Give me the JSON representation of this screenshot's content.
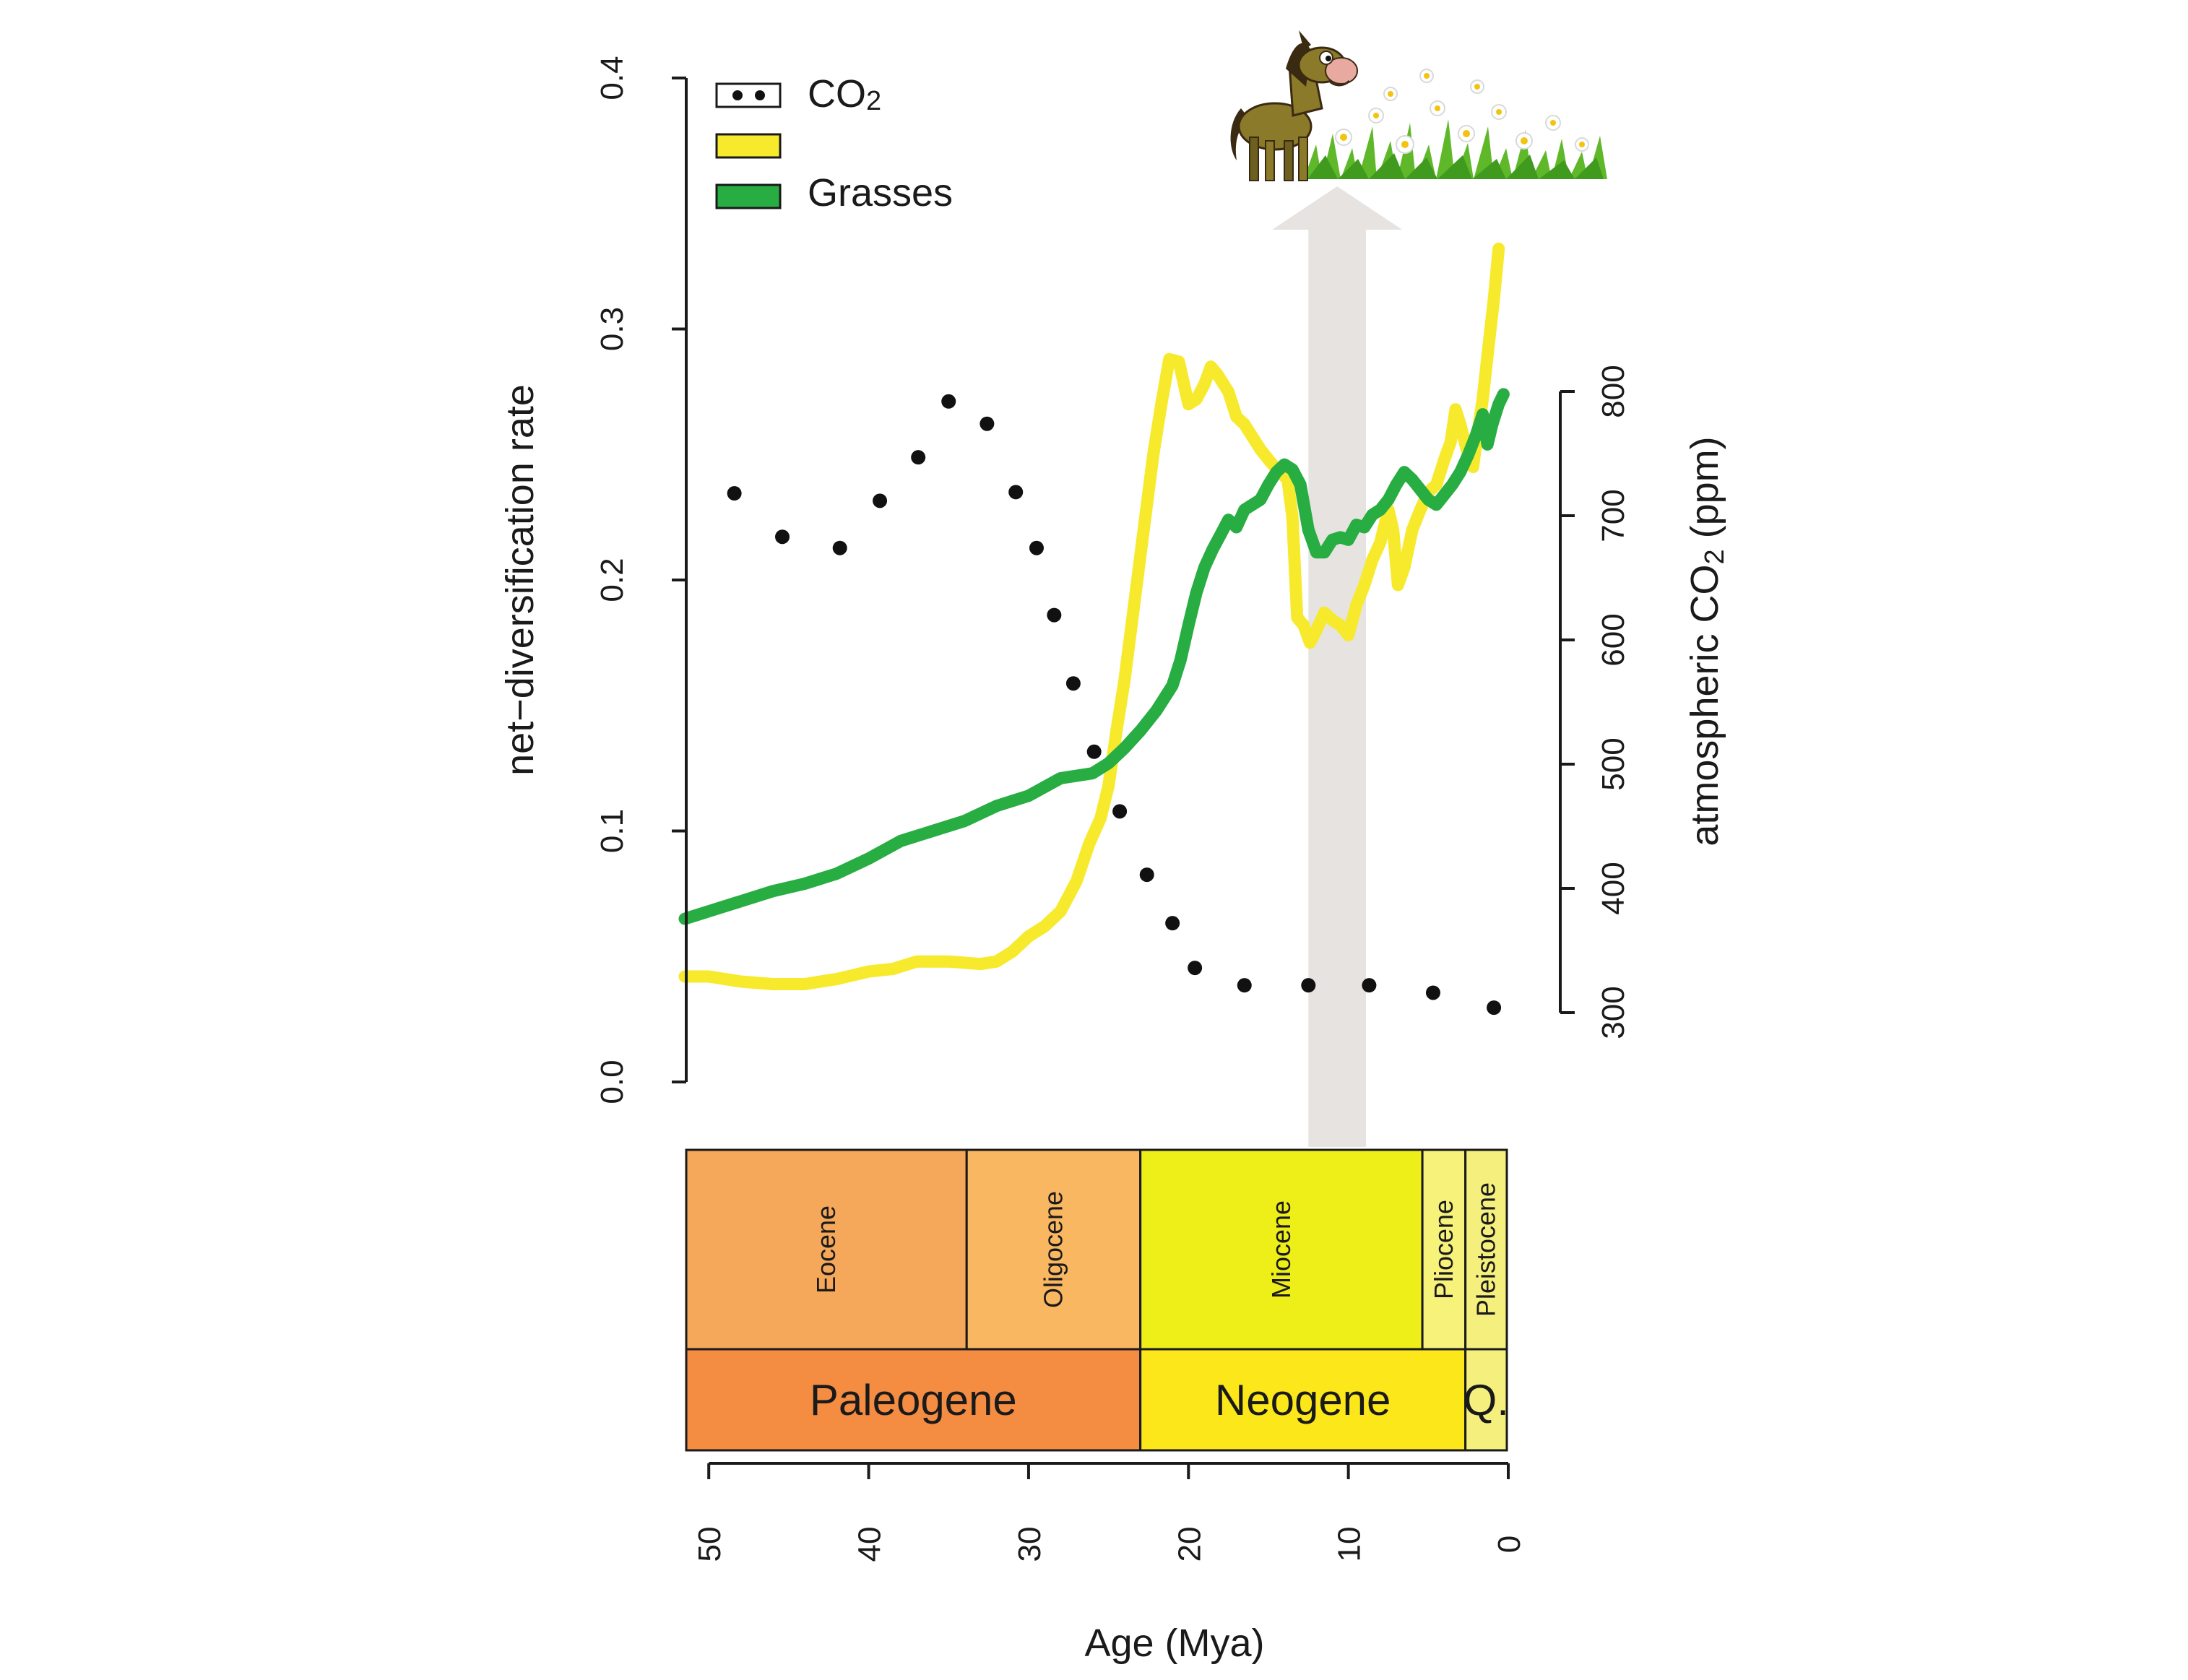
{
  "chart_data": {
    "type": "line",
    "x_axis": {
      "label": "Age (Mya)",
      "ticks": [
        "50",
        "40",
        "30",
        "20",
        "10",
        "0"
      ],
      "tick_values": [
        50,
        40,
        30,
        20,
        10,
        0
      ],
      "range": [
        51.5,
        0
      ],
      "reversed": true
    },
    "y_left_axis": {
      "label": "net−diversification rate",
      "ticks": [
        "0.0",
        "0.1",
        "0.2",
        "0.3",
        "0.4"
      ],
      "tick_values": [
        0,
        0.1,
        0.2,
        0.3,
        0.4
      ],
      "range": [
        0,
        0.4
      ]
    },
    "y_right_axis": {
      "label_main": "atmospheric CO",
      "label_sub": "2",
      "label_tail": " (ppm)",
      "ticks": [
        "300",
        "400",
        "500",
        "600",
        "700",
        "800"
      ],
      "tick_values": [
        300,
        400,
        500,
        600,
        700,
        800
      ],
      "range": [
        0,
        1300
      ]
    },
    "legend": {
      "placement": "top-left",
      "entries": [
        {
          "main": "CO",
          "sub": "2",
          "style": "dots",
          "color": "#111111"
        },
        {
          "main": "",
          "sub": "",
          "style": "line",
          "color": "#f7ea2d"
        },
        {
          "main": "Grasses",
          "sub": "",
          "style": "line",
          "color": "#27ad42"
        }
      ]
    },
    "series": [
      {
        "key": "co2",
        "style": "dots",
        "color": "#111111",
        "axis": "right",
        "points": [
          [
            48.4,
            718
          ],
          [
            45.4,
            683
          ],
          [
            41.8,
            674
          ],
          [
            39.3,
            712
          ],
          [
            36.9,
            747
          ],
          [
            35.0,
            792
          ],
          [
            32.6,
            774
          ],
          [
            30.8,
            719
          ],
          [
            29.5,
            674
          ],
          [
            28.4,
            620
          ],
          [
            27.2,
            565
          ],
          [
            25.9,
            510
          ],
          [
            24.3,
            462
          ],
          [
            22.6,
            411
          ],
          [
            21.0,
            372
          ],
          [
            19.6,
            336
          ],
          [
            16.5,
            322
          ],
          [
            12.5,
            322
          ],
          [
            8.7,
            322
          ],
          [
            4.7,
            316
          ],
          [
            0.9,
            304
          ]
        ]
      },
      {
        "key": "yellow",
        "style": "line",
        "color": "#f7ea2d",
        "axis": "left",
        "points": [
          [
            51.5,
            0.042
          ],
          [
            50,
            0.042
          ],
          [
            48,
            0.04
          ],
          [
            46,
            0.039
          ],
          [
            44,
            0.039
          ],
          [
            42,
            0.041
          ],
          [
            40,
            0.044
          ],
          [
            38.5,
            0.045
          ],
          [
            37,
            0.048
          ],
          [
            35,
            0.048
          ],
          [
            33,
            0.047
          ],
          [
            32,
            0.048
          ],
          [
            31,
            0.052
          ],
          [
            30,
            0.058
          ],
          [
            29,
            0.062
          ],
          [
            28,
            0.068
          ],
          [
            27,
            0.08
          ],
          [
            26.2,
            0.095
          ],
          [
            25.5,
            0.105
          ],
          [
            25,
            0.118
          ],
          [
            24.5,
            0.14
          ],
          [
            24,
            0.16
          ],
          [
            23.3,
            0.195
          ],
          [
            22.7,
            0.225
          ],
          [
            22.2,
            0.25
          ],
          [
            21.7,
            0.27
          ],
          [
            21.2,
            0.288
          ],
          [
            20.6,
            0.287
          ],
          [
            20,
            0.27
          ],
          [
            19.5,
            0.272
          ],
          [
            19,
            0.278
          ],
          [
            18.6,
            0.285
          ],
          [
            18.2,
            0.282
          ],
          [
            17.5,
            0.275
          ],
          [
            17,
            0.265
          ],
          [
            16.5,
            0.262
          ],
          [
            15.5,
            0.252
          ],
          [
            15,
            0.248
          ],
          [
            14.6,
            0.245
          ],
          [
            13.8,
            0.24
          ],
          [
            13.5,
            0.225
          ],
          [
            13.2,
            0.185
          ],
          [
            12.8,
            0.182
          ],
          [
            12.4,
            0.175
          ],
          [
            12,
            0.18
          ],
          [
            11.5,
            0.187
          ],
          [
            11,
            0.184
          ],
          [
            10.5,
            0.182
          ],
          [
            10,
            0.178
          ],
          [
            9.5,
            0.19
          ],
          [
            9,
            0.198
          ],
          [
            8.5,
            0.208
          ],
          [
            8,
            0.215
          ],
          [
            7.5,
            0.228
          ],
          [
            7.2,
            0.22
          ],
          [
            6.9,
            0.198
          ],
          [
            6.5,
            0.205
          ],
          [
            6,
            0.22
          ],
          [
            5.5,
            0.228
          ],
          [
            5,
            0.235
          ],
          [
            4.5,
            0.238
          ],
          [
            4,
            0.248
          ],
          [
            3.6,
            0.255
          ],
          [
            3.3,
            0.268
          ],
          [
            3,
            0.262
          ],
          [
            2.6,
            0.252
          ],
          [
            2.2,
            0.245
          ],
          [
            2,
            0.255
          ],
          [
            1.6,
            0.272
          ],
          [
            1.2,
            0.295
          ],
          [
            0.9,
            0.312
          ],
          [
            0.6,
            0.332
          ]
        ]
      },
      {
        "key": "grasses",
        "style": "line",
        "color": "#27ad42",
        "axis": "left",
        "points": [
          [
            51.5,
            0.065
          ],
          [
            50,
            0.068
          ],
          [
            48,
            0.072
          ],
          [
            46,
            0.076
          ],
          [
            44,
            0.079
          ],
          [
            42,
            0.083
          ],
          [
            40,
            0.089
          ],
          [
            38,
            0.096
          ],
          [
            36,
            0.1
          ],
          [
            34,
            0.104
          ],
          [
            32,
            0.11
          ],
          [
            30,
            0.114
          ],
          [
            28,
            0.121
          ],
          [
            26,
            0.123
          ],
          [
            25,
            0.127
          ],
          [
            24,
            0.133
          ],
          [
            23,
            0.14
          ],
          [
            22,
            0.148
          ],
          [
            21,
            0.158
          ],
          [
            20.5,
            0.168
          ],
          [
            20,
            0.182
          ],
          [
            19.5,
            0.195
          ],
          [
            19,
            0.205
          ],
          [
            18.5,
            0.212
          ],
          [
            18,
            0.218
          ],
          [
            17.5,
            0.224
          ],
          [
            17,
            0.221
          ],
          [
            16.5,
            0.228
          ],
          [
            16,
            0.23
          ],
          [
            15.5,
            0.232
          ],
          [
            15,
            0.238
          ],
          [
            14.5,
            0.243
          ],
          [
            14,
            0.246
          ],
          [
            13.5,
            0.244
          ],
          [
            13,
            0.238
          ],
          [
            12.5,
            0.22
          ],
          [
            12,
            0.211
          ],
          [
            11.5,
            0.211
          ],
          [
            11,
            0.216
          ],
          [
            10.5,
            0.217
          ],
          [
            10,
            0.216
          ],
          [
            9.5,
            0.222
          ],
          [
            9,
            0.221
          ],
          [
            8.5,
            0.226
          ],
          [
            8,
            0.228
          ],
          [
            7.5,
            0.232
          ],
          [
            7,
            0.238
          ],
          [
            6.5,
            0.243
          ],
          [
            6,
            0.24
          ],
          [
            5.5,
            0.236
          ],
          [
            5,
            0.232
          ],
          [
            4.5,
            0.23
          ],
          [
            4,
            0.234
          ],
          [
            3.5,
            0.238
          ],
          [
            3,
            0.243
          ],
          [
            2.5,
            0.25
          ],
          [
            2,
            0.258
          ],
          [
            1.6,
            0.266
          ],
          [
            1.3,
            0.254
          ],
          [
            1,
            0.262
          ],
          [
            0.6,
            0.27
          ],
          [
            0.3,
            0.274
          ]
        ]
      }
    ],
    "annotation": {
      "type": "vertical-arrow",
      "x_range": [
        12.5,
        8.9
      ],
      "color": "#e6e3e0",
      "icon": "horse-grazing-meadow-icon"
    },
    "timescale": {
      "epochs": [
        {
          "label": "Eocene",
          "start": 51.5,
          "end": 33.9,
          "color": "#f5a75a"
        },
        {
          "label": "Oligocene",
          "start": 33.9,
          "end": 23.0,
          "color": "#f9b762"
        },
        {
          "label": "Miocene",
          "start": 23.0,
          "end": 5.3,
          "color": "#eeee19"
        },
        {
          "label": "Pliocene",
          "start": 5.3,
          "end": 2.6,
          "color": "#f7f27a"
        },
        {
          "label": "Pleistocene",
          "start": 2.6,
          "end": 0,
          "color": "#f5f07d"
        }
      ],
      "periods": [
        {
          "label": "Paleogene",
          "start": 51.5,
          "end": 23.0,
          "color": "#f48c42"
        },
        {
          "label": "Neogene",
          "start": 23.0,
          "end": 2.6,
          "color": "#fbe71a"
        },
        {
          "label": "Q.",
          "start": 2.6,
          "end": 0,
          "color": "#f5f07d"
        }
      ]
    }
  }
}
